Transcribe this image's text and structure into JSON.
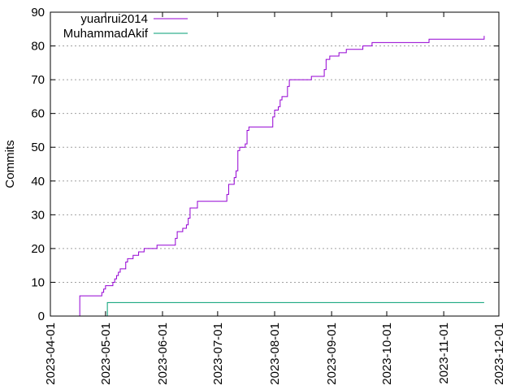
{
  "chart_data": {
    "type": "line",
    "title": "",
    "xlabel": "",
    "ylabel": "Commits",
    "ylim": [
      0,
      90
    ],
    "xlim": [
      "2023-04-01",
      "2023-12-01"
    ],
    "grid": "horizontal dashed",
    "legend_position": "top-left",
    "y_ticks": [
      "0",
      "10",
      "20",
      "30",
      "40",
      "50",
      "60",
      "70",
      "80",
      "90"
    ],
    "x_ticks": [
      "2023-04-01",
      "2023-05-01",
      "2023-06-01",
      "2023-07-01",
      "2023-08-01",
      "2023-09-01",
      "2023-10-01",
      "2023-11-01",
      "2023-12-01"
    ],
    "series": [
      {
        "name": "yuanrui2014",
        "color": "#9400d3",
        "step": true,
        "points": [
          [
            "2023-04-16",
            0
          ],
          [
            "2023-04-17",
            6
          ],
          [
            "2023-04-29",
            7
          ],
          [
            "2023-04-30",
            8
          ],
          [
            "2023-05-01",
            9
          ],
          [
            "2023-05-05",
            10
          ],
          [
            "2023-05-06",
            11
          ],
          [
            "2023-05-07",
            12
          ],
          [
            "2023-05-08",
            13
          ],
          [
            "2023-05-09",
            14
          ],
          [
            "2023-05-12",
            16
          ],
          [
            "2023-05-13",
            17
          ],
          [
            "2023-05-16",
            18
          ],
          [
            "2023-05-19",
            19
          ],
          [
            "2023-05-22",
            20
          ],
          [
            "2023-05-29",
            21
          ],
          [
            "2023-06-08",
            23
          ],
          [
            "2023-06-09",
            25
          ],
          [
            "2023-06-12",
            26
          ],
          [
            "2023-06-14",
            27
          ],
          [
            "2023-06-15",
            29
          ],
          [
            "2023-06-16",
            32
          ],
          [
            "2023-06-20",
            34
          ],
          [
            "2023-07-06",
            36
          ],
          [
            "2023-07-07",
            39
          ],
          [
            "2023-07-10",
            41
          ],
          [
            "2023-07-11",
            43
          ],
          [
            "2023-07-12",
            49
          ],
          [
            "2023-07-13",
            50
          ],
          [
            "2023-07-16",
            51
          ],
          [
            "2023-07-17",
            55
          ],
          [
            "2023-07-18",
            56
          ],
          [
            "2023-07-31",
            59
          ],
          [
            "2023-08-01",
            61
          ],
          [
            "2023-08-03",
            62
          ],
          [
            "2023-08-04",
            64
          ],
          [
            "2023-08-05",
            65
          ],
          [
            "2023-08-08",
            68
          ],
          [
            "2023-08-09",
            70
          ],
          [
            "2023-08-21",
            71
          ],
          [
            "2023-08-28",
            73
          ],
          [
            "2023-08-29",
            76
          ],
          [
            "2023-08-31",
            77
          ],
          [
            "2023-09-05",
            78
          ],
          [
            "2023-09-09",
            79
          ],
          [
            "2023-09-18",
            80
          ],
          [
            "2023-09-23",
            81
          ],
          [
            "2023-10-24",
            82
          ],
          [
            "2023-11-23",
            83
          ]
        ]
      },
      {
        "name": "MuhammadAkif",
        "color": "#009e73",
        "step": true,
        "points": [
          [
            "2023-05-01",
            0
          ],
          [
            "2023-05-02",
            4
          ],
          [
            "2023-11-23",
            4
          ]
        ]
      }
    ]
  }
}
